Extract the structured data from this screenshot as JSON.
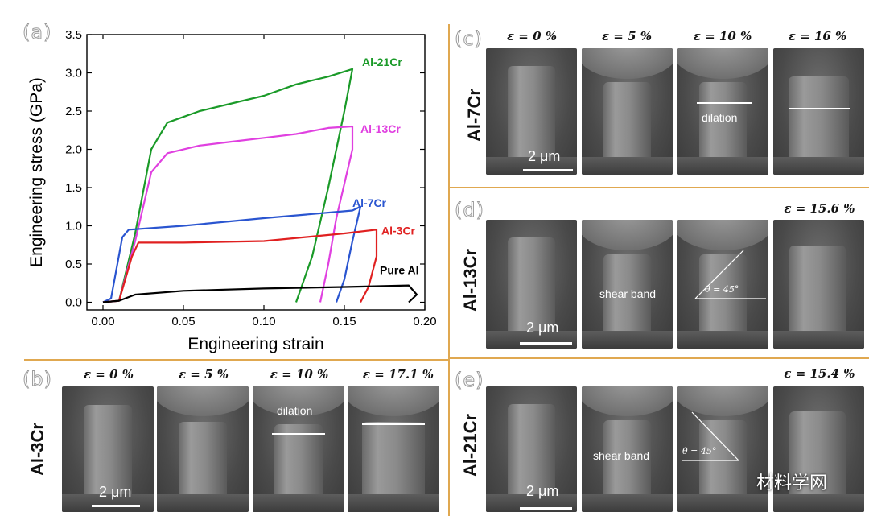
{
  "panels": {
    "a": {
      "letter": "(a)"
    },
    "b": {
      "letter": "(b)",
      "alloy": "Al-3Cr",
      "strains": [
        "ε = 0 %",
        "ε = 5 %",
        "ε = 10 %",
        "ε = 17.1 %"
      ],
      "annotation": "dilation",
      "scale": "2 μm"
    },
    "c": {
      "letter": "(c)",
      "alloy": "Al-7Cr",
      "strains": [
        "ε = 0 %",
        "ε = 5 %",
        "ε = 10 %",
        "ε = 16 %"
      ],
      "annotation": "dilation",
      "scale": "2 μm"
    },
    "d": {
      "letter": "(d)",
      "alloy": "Al-13Cr",
      "strain": "ε = 15.6 %",
      "shear": "shear band",
      "angle": "θ = 45°",
      "scale": "2 μm"
    },
    "e": {
      "letter": "(e)",
      "alloy": "Al-21Cr",
      "strain": "ε = 15.4 %",
      "shear": "shear band",
      "angle": "θ = 45°",
      "scale": "2 μm"
    }
  },
  "watermark": "材料学网",
  "colors": {
    "divider": "#e0a850",
    "al21": "#1a9a28",
    "al13": "#e040e0",
    "al7": "#2a55d0",
    "al3": "#e02020",
    "pure": "#000000"
  },
  "chart_data": {
    "type": "line",
    "title": "",
    "xlabel": "Engineering strain",
    "ylabel": "Engineering stress (GPa)",
    "xlim": [
      -0.01,
      0.2
    ],
    "ylim": [
      -0.1,
      3.5
    ],
    "xticks": [
      "0.00",
      "0.05",
      "0.10",
      "0.15",
      "0.20"
    ],
    "xtick_values": [
      0,
      0.05,
      0.1,
      0.15,
      0.2
    ],
    "yticks": [
      "0.0",
      "0.5",
      "1.0",
      "1.5",
      "2.0",
      "2.5",
      "3.0",
      "3.5"
    ],
    "ytick_values": [
      0,
      0.5,
      1.0,
      1.5,
      2.0,
      2.5,
      3.0,
      3.5
    ],
    "grid": false,
    "series": [
      {
        "name": "Al-21Cr",
        "color": "#1a9a28",
        "x": [
          0.0,
          0.01,
          0.02,
          0.03,
          0.04,
          0.06,
          0.08,
          0.1,
          0.12,
          0.14,
          0.155,
          0.15,
          0.14,
          0.13,
          0.12
        ],
        "y": [
          0.0,
          0.02,
          0.9,
          2.0,
          2.35,
          2.5,
          2.6,
          2.7,
          2.85,
          2.95,
          3.05,
          2.5,
          1.5,
          0.6,
          0.0
        ]
      },
      {
        "name": "Al-13Cr",
        "color": "#e040e0",
        "x": [
          0.0,
          0.01,
          0.02,
          0.03,
          0.04,
          0.06,
          0.08,
          0.1,
          0.12,
          0.14,
          0.155,
          0.155,
          0.145,
          0.14,
          0.135
        ],
        "y": [
          0.0,
          0.02,
          0.8,
          1.7,
          1.95,
          2.05,
          2.1,
          2.15,
          2.2,
          2.28,
          2.3,
          2.0,
          1.1,
          0.5,
          0.0
        ]
      },
      {
        "name": "Al-7Cr",
        "color": "#2a55d0",
        "x": [
          0.0,
          0.005,
          0.012,
          0.016,
          0.05,
          0.1,
          0.155,
          0.16,
          0.155,
          0.15,
          0.145
        ],
        "y": [
          0.0,
          0.05,
          0.85,
          0.95,
          1.0,
          1.1,
          1.2,
          1.25,
          0.8,
          0.3,
          0.0
        ]
      },
      {
        "name": "Al-3Cr",
        "color": "#e02020",
        "x": [
          0.0,
          0.01,
          0.018,
          0.022,
          0.05,
          0.1,
          0.15,
          0.17,
          0.17,
          0.165,
          0.16
        ],
        "y": [
          0.0,
          0.02,
          0.6,
          0.78,
          0.78,
          0.8,
          0.9,
          0.95,
          0.6,
          0.2,
          0.0
        ]
      },
      {
        "name": "Pure Al",
        "color": "#000000",
        "x": [
          0.0,
          0.01,
          0.02,
          0.05,
          0.1,
          0.15,
          0.19,
          0.195,
          0.19
        ],
        "y": [
          0.0,
          0.02,
          0.1,
          0.15,
          0.18,
          0.2,
          0.22,
          0.1,
          0.0
        ]
      }
    ]
  }
}
